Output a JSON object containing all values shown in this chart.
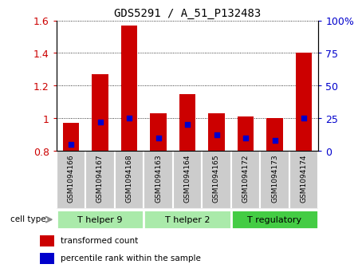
{
  "title": "GDS5291 / A_51_P132483",
  "samples": [
    "GSM1094166",
    "GSM1094167",
    "GSM1094168",
    "GSM1094163",
    "GSM1094164",
    "GSM1094165",
    "GSM1094172",
    "GSM1094173",
    "GSM1094174"
  ],
  "transformed_counts": [
    0.97,
    1.27,
    1.57,
    1.03,
    1.15,
    1.03,
    1.01,
    1.0,
    1.4
  ],
  "percentile_ranks": [
    5,
    22,
    25,
    10,
    20,
    12,
    10,
    8,
    25
  ],
  "ylim_left": [
    0.8,
    1.6
  ],
  "ylim_right": [
    0,
    100
  ],
  "yticks_left": [
    0.8,
    1.0,
    1.2,
    1.4,
    1.6
  ],
  "ytick_labels_left": [
    "0.8",
    "1",
    "1.2",
    "1.4",
    "1.6"
  ],
  "yticks_right": [
    0,
    25,
    50,
    75,
    100
  ],
  "ytick_labels_right": [
    "0",
    "25",
    "50",
    "75",
    "100%"
  ],
  "bar_color": "#cc0000",
  "dot_color": "#0000cc",
  "bar_width": 0.55,
  "cell_types": [
    {
      "label": "T helper 9",
      "indices": [
        0,
        1,
        2
      ],
      "color": "#aaeaaa"
    },
    {
      "label": "T helper 2",
      "indices": [
        3,
        4,
        5
      ],
      "color": "#aaeaaa"
    },
    {
      "label": "T regulatory",
      "indices": [
        6,
        7,
        8
      ],
      "color": "#44cc44"
    }
  ],
  "cell_type_label": "cell type",
  "legend_items": [
    {
      "color": "#cc0000",
      "label": "transformed count"
    },
    {
      "color": "#0000cc",
      "label": "percentile rank within the sample"
    }
  ],
  "left_axis_color": "#cc0000",
  "right_axis_color": "#0000cc",
  "sample_bg_color": "#cccccc",
  "plot_bg_color": "#ffffff",
  "border_color": "#000000"
}
